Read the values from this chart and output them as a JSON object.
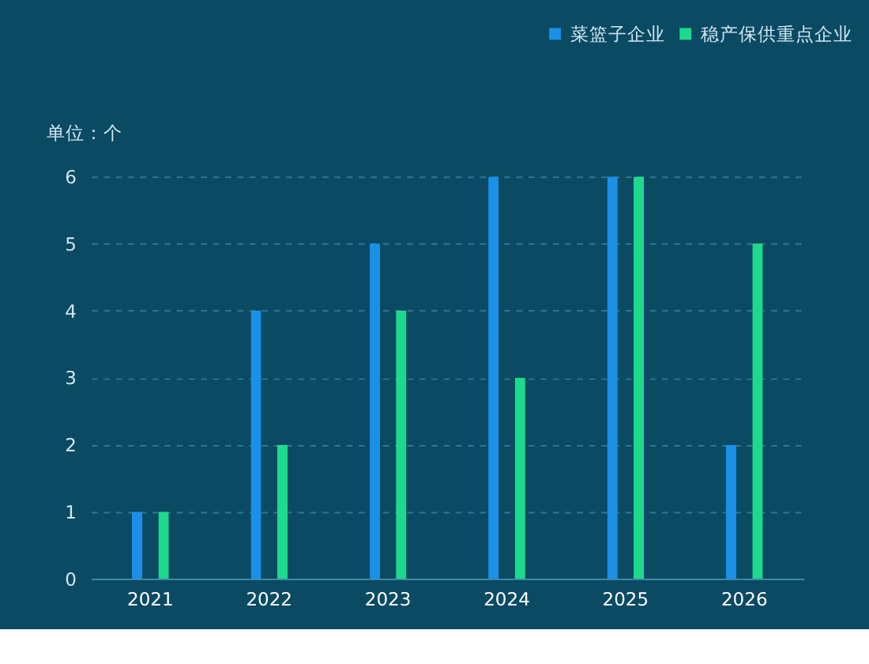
{
  "chart_data": {
    "type": "bar",
    "ylabel": "单位：个",
    "categories": [
      "2021",
      "2022",
      "2023",
      "2024",
      "2025",
      "2026"
    ],
    "series": [
      {
        "name": "菜篮子企业",
        "color": "#1a90e6",
        "values": [
          1,
          4,
          5,
          6,
          6,
          2
        ]
      },
      {
        "name": "稳产保供重点企业",
        "color": "#1ed98c",
        "values": [
          1,
          2,
          4,
          3,
          6,
          5
        ]
      }
    ],
    "ylim": [
      0,
      6
    ],
    "yticks": [
      0,
      1,
      2,
      3,
      4,
      5,
      6
    ],
    "grid": "y",
    "legend": "top right"
  }
}
